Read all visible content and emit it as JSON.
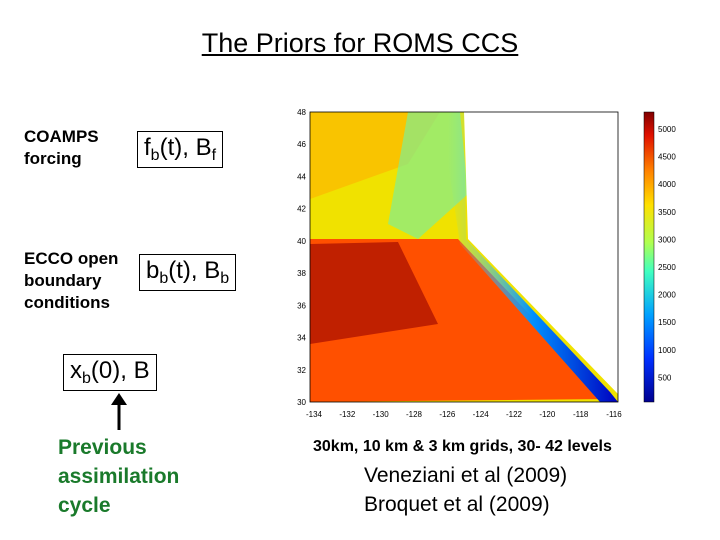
{
  "title": "The Priors for ROMS CCS",
  "rows": [
    {
      "label": "COAMPS\nforcing",
      "var": "f",
      "sub": "b",
      "mid": "(t), B",
      "sub2": "f"
    },
    {
      "label": "ECCO open\nboundary\nconditions",
      "var": "b",
      "sub": "b",
      "mid": "(t), B",
      "sub2": "b"
    }
  ],
  "initial": {
    "var": "x",
    "sub": "b",
    "rest": "(0), B"
  },
  "previous": "Previous\nassimilation\ncycle",
  "map": {
    "lat_ticks": [
      "48",
      "46",
      "44",
      "42",
      "40",
      "38",
      "36",
      "34",
      "32",
      "30"
    ],
    "lon_ticks": [
      "-134",
      "-132",
      "-130",
      "-128",
      "-126",
      "-124",
      "-122",
      "-120",
      "-118",
      "-116"
    ],
    "colorbar_ticks": [
      "5000",
      "4500",
      "4000",
      "3500",
      "3000",
      "2500",
      "2000",
      "1500",
      "1000",
      "500"
    ]
  },
  "grid_caption": "30km, 10 km & 3 km grids, 30- 42 levels",
  "refs": [
    "Veneziani et al (2009)",
    "Broquet et al (2009)"
  ]
}
